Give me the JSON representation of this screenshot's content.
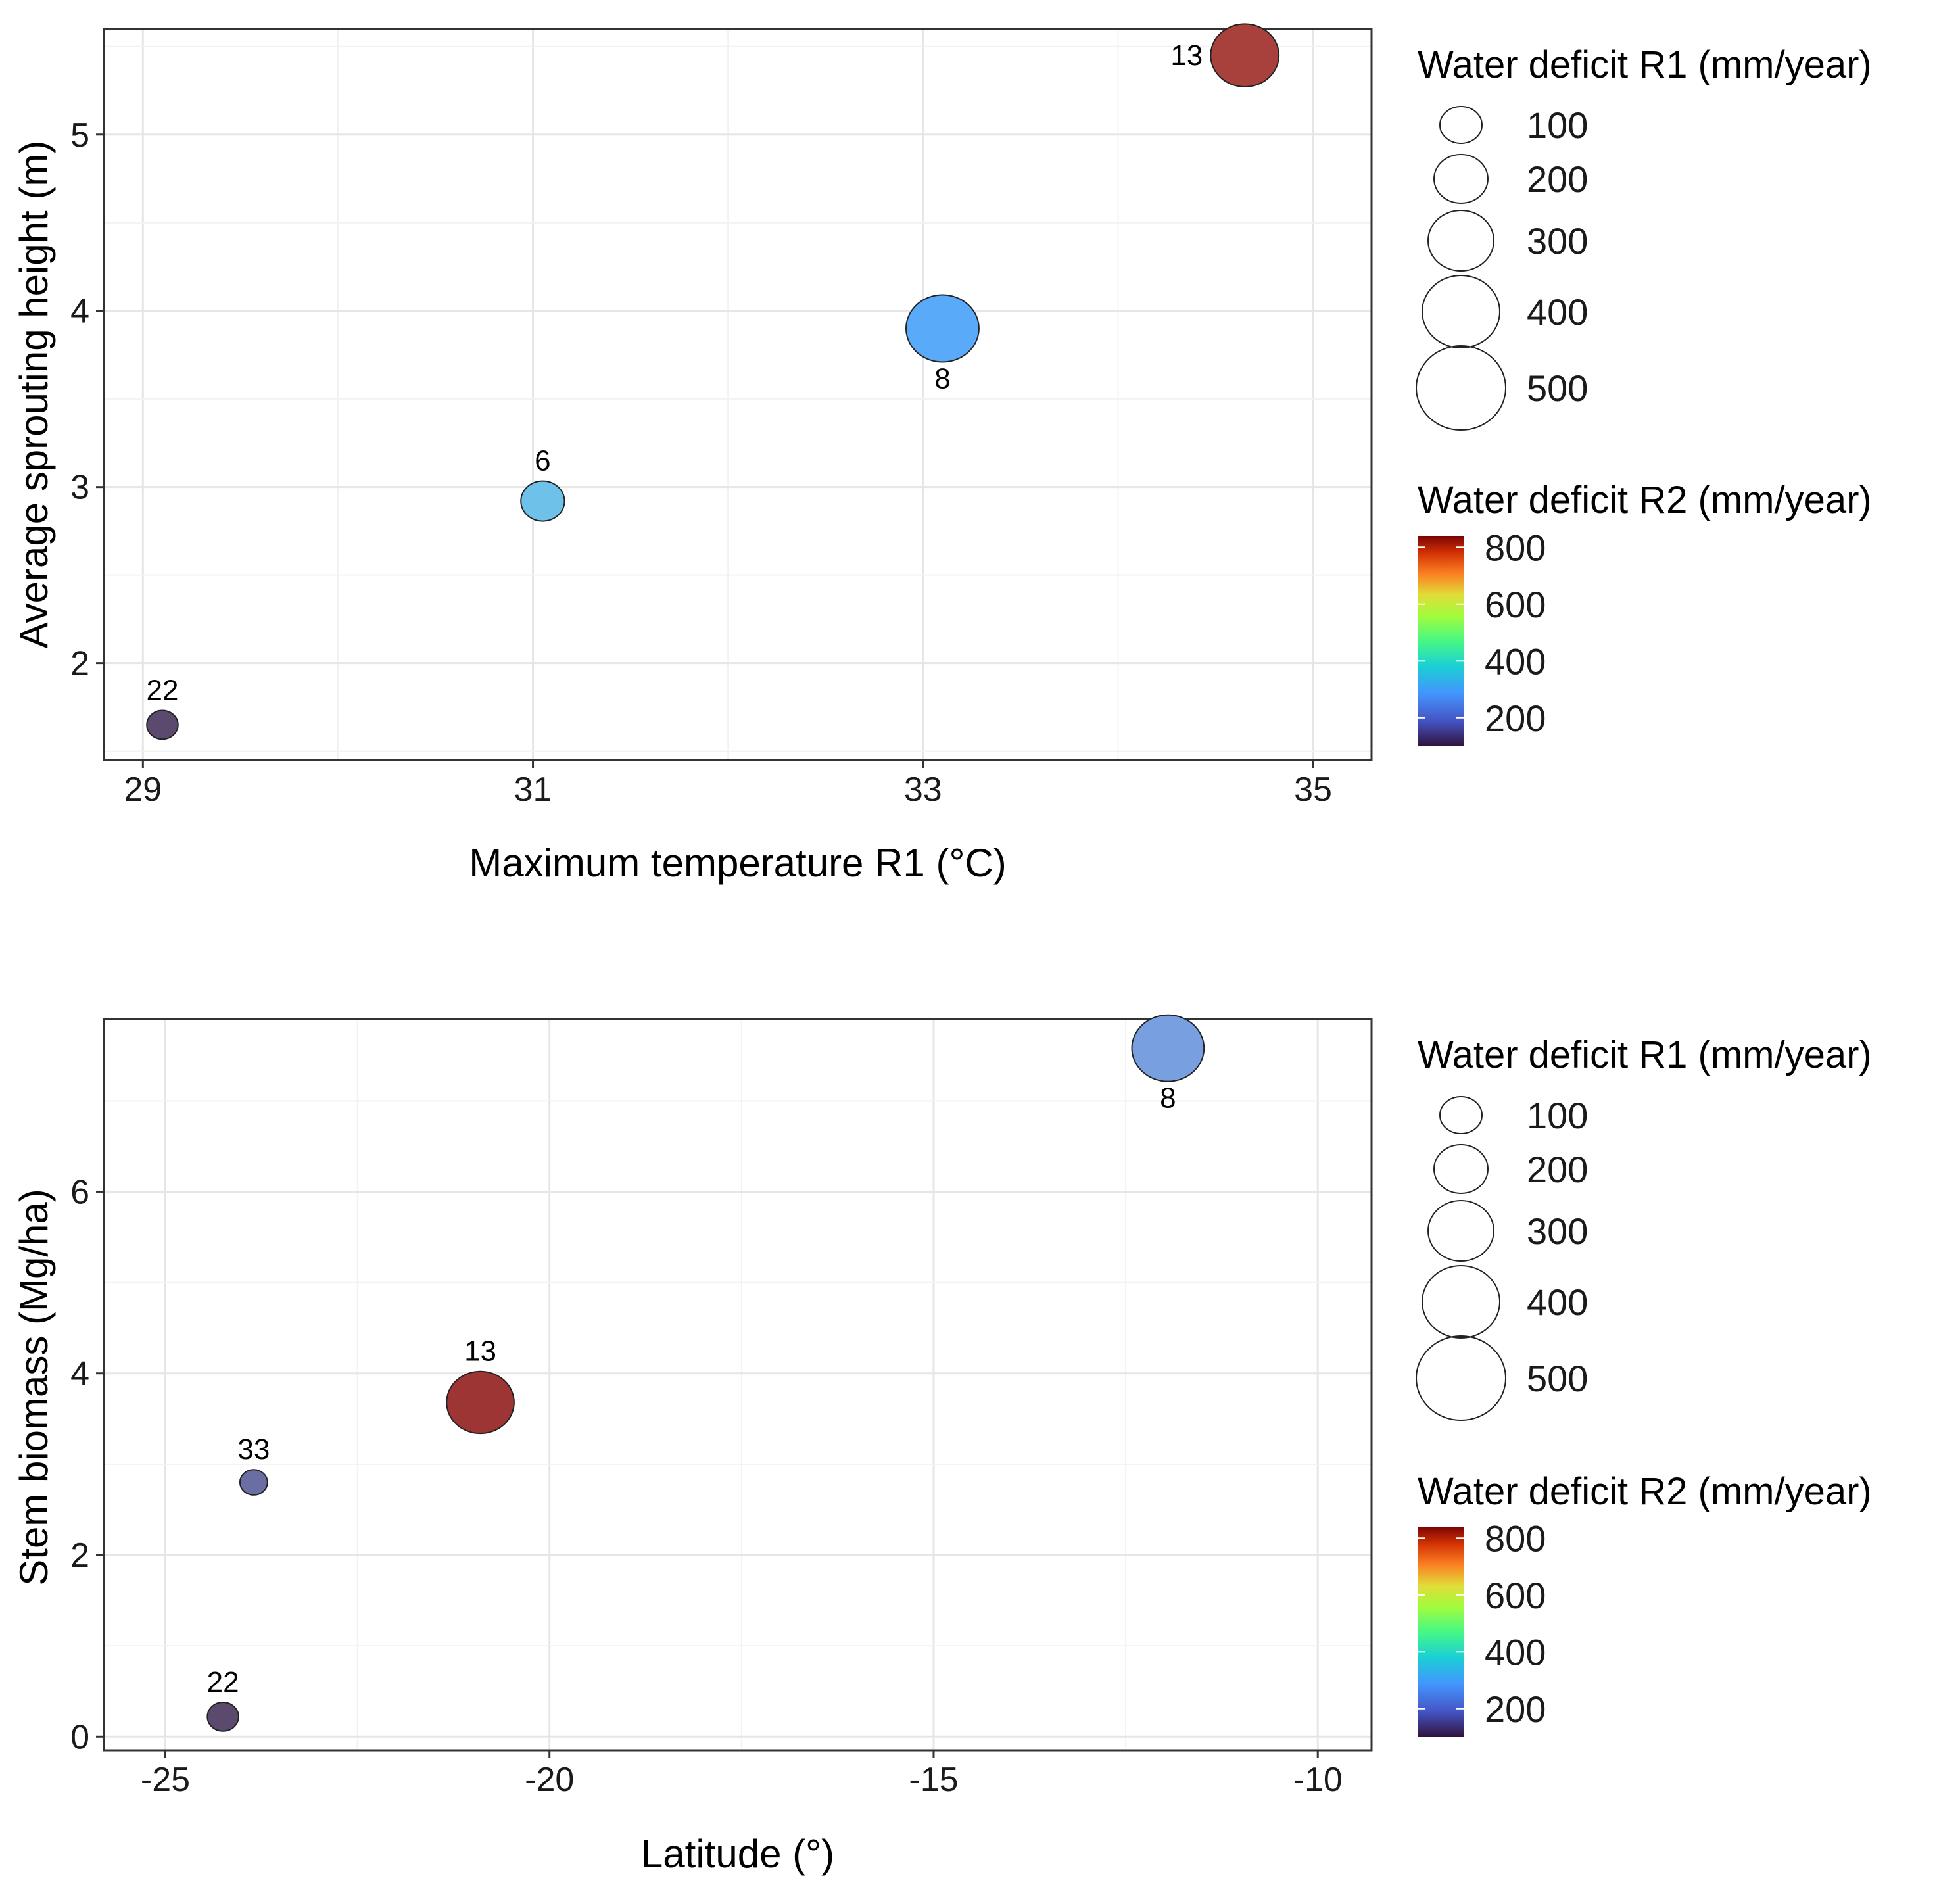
{
  "chart_data": [
    {
      "type": "scatter",
      "title": "",
      "xlabel": "Maximum temperature R1 (°C)",
      "ylabel": "Average sprouting height (m)",
      "xlim": [
        28.8,
        35.3
      ],
      "ylim": [
        1.45,
        5.6
      ],
      "x_ticks": [
        29,
        31,
        33,
        35
      ],
      "x_tick_labels": [
        "29",
        "31",
        "33",
        "35"
      ],
      "y_ticks": [
        2,
        3,
        4,
        5
      ],
      "y_tick_labels": [
        "2",
        "3",
        "4",
        "5"
      ],
      "grid": true,
      "points": [
        {
          "label": "22",
          "x": 29.1,
          "y": 1.65,
          "size": 90,
          "color_value": 100,
          "fill": "#5b4a6e",
          "label_pos": "top"
        },
        {
          "label": "6",
          "x": 31.05,
          "y": 2.92,
          "size": 175,
          "color_value": 260,
          "fill": "#6ec2ea",
          "label_pos": "top"
        },
        {
          "label": "8",
          "x": 33.1,
          "y": 3.9,
          "size": 490,
          "color_value": 230,
          "fill": "#5aaafa",
          "label_pos": "bottom"
        },
        {
          "label": "13",
          "x": 34.65,
          "y": 5.45,
          "size": 430,
          "color_value": 800,
          "fill": "#a8403c",
          "label_pos": "left"
        }
      ],
      "legend_size": {
        "title": "Water deficit R1 (mm/year)",
        "values": [
          100,
          200,
          300,
          400,
          500
        ],
        "labels": [
          "100",
          "200",
          "300",
          "400",
          "500"
        ]
      },
      "legend_color": {
        "title": "Water deficit R2 (mm/year)",
        "min": 100,
        "max": 840,
        "ticks": [
          200,
          400,
          600,
          800
        ],
        "labels": [
          "200",
          "400",
          "600",
          "800"
        ]
      }
    },
    {
      "type": "scatter",
      "title": "",
      "xlabel": "Latitude (°)",
      "ylabel": "Stem biomass (Mg/ha)",
      "xlim": [
        -25.8,
        -9.3
      ],
      "ylim": [
        -0.15,
        7.9
      ],
      "x_ticks": [
        -25,
        -20,
        -15,
        -10
      ],
      "x_tick_labels": [
        "-25",
        "-20",
        "-15",
        "-10"
      ],
      "y_ticks": [
        0,
        2,
        4,
        6
      ],
      "y_tick_labels": [
        "0",
        "2",
        "4",
        "6"
      ],
      "grid": true,
      "points": [
        {
          "label": "22",
          "x": -24.25,
          "y": 0.22,
          "size": 90,
          "color_value": 100,
          "fill": "#5b4a6e",
          "label_pos": "top"
        },
        {
          "label": "33",
          "x": -23.85,
          "y": 2.8,
          "size": 70,
          "color_value": 140,
          "fill": "#6a6ea3",
          "label_pos": "top"
        },
        {
          "label": "13",
          "x": -20.9,
          "y": 3.68,
          "size": 420,
          "color_value": 800,
          "fill": "#9e3535",
          "label_pos": "top"
        },
        {
          "label": "8",
          "x": -11.95,
          "y": 7.58,
          "size": 480,
          "color_value": 210,
          "fill": "#78a0e0",
          "label_pos": "bottom"
        }
      ],
      "legend_size": {
        "title": "Water deficit R1 (mm/year)",
        "values": [
          100,
          200,
          300,
          400,
          500
        ],
        "labels": [
          "100",
          "200",
          "300",
          "400",
          "500"
        ]
      },
      "legend_color": {
        "title": "Water deficit R2 (mm/year)",
        "min": 100,
        "max": 840,
        "ticks": [
          200,
          400,
          600,
          800
        ],
        "labels": [
          "200",
          "400",
          "600",
          "800"
        ]
      }
    }
  ]
}
